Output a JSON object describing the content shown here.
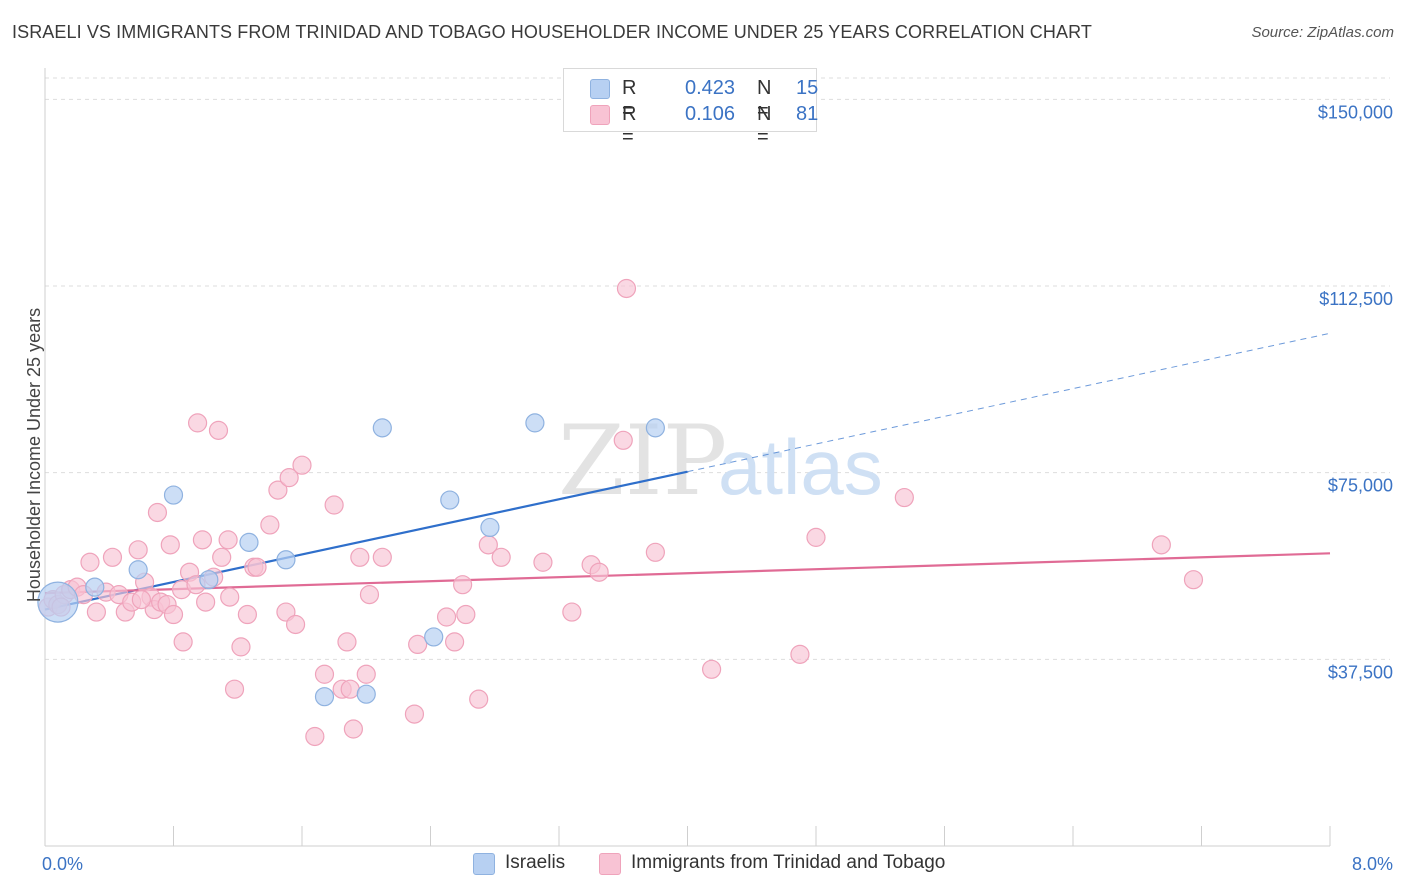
{
  "title": "ISRAELI VS IMMIGRANTS FROM TRINIDAD AND TOBAGO HOUSEHOLDER INCOME UNDER 25 YEARS CORRELATION CHART",
  "source": "Source: ZipAtlas.com",
  "watermark": {
    "zip": "ZIP",
    "atlas": "atlas"
  },
  "legend_top": {
    "r_label": "R =",
    "n_label": "N =",
    "rows": [
      {
        "r": "0.423",
        "n": "15"
      },
      {
        "r": "0.106",
        "n": "81"
      }
    ]
  },
  "legend_bottom": [
    "Israelis",
    "Immigrants from Trinidad and Tobago"
  ],
  "colors": {
    "israelis_fill": "#b7d0f2",
    "israelis_stroke": "#8fb2e0",
    "israelis_line": "#2f6fcb",
    "tt_fill": "#f8c3d4",
    "tt_stroke": "#efa3bb",
    "tt_line": "#e06b95",
    "axis_text": "#3b73c4",
    "grid": "#dddddd"
  },
  "chart_data": {
    "type": "scatter",
    "ylabel": "Householder Income Under 25 years",
    "x_range": [
      0,
      8
    ],
    "x_unit": "%",
    "y_range": [
      0,
      157500
    ],
    "x_tick_labels": [
      "0.0%",
      "8.0%"
    ],
    "y_ticks": [
      37500,
      75000,
      112500,
      150000
    ],
    "y_tick_labels": [
      "$37,500",
      "$75,000",
      "$112,500",
      "$150,000"
    ],
    "grid": true,
    "series": [
      {
        "name": "Israelis",
        "r": 0.423,
        "n": 15,
        "points": [
          [
            0.08,
            49000,
            20
          ],
          [
            0.31,
            52000,
            9
          ],
          [
            0.58,
            55500,
            9
          ],
          [
            0.8,
            70500,
            9
          ],
          [
            1.02,
            53500,
            9
          ],
          [
            1.27,
            61000,
            9
          ],
          [
            1.5,
            57500,
            9
          ],
          [
            1.74,
            30000,
            9
          ],
          [
            2.0,
            30500,
            9
          ],
          [
            2.1,
            84000,
            9
          ],
          [
            2.42,
            42000,
            9
          ],
          [
            2.52,
            69500,
            9
          ],
          [
            2.77,
            64000,
            9
          ],
          [
            3.05,
            85000,
            9
          ],
          [
            3.8,
            84000,
            9
          ]
        ],
        "trend": {
          "x_start": 0.0,
          "y_start": 47500,
          "x_end_solid": 4.0,
          "y_end_solid": 75200,
          "x_end_dashed": 8.0,
          "y_end_dashed": 103000
        }
      },
      {
        "name": "Immigrants from Trinidad and Tobago",
        "r": 0.106,
        "n": 81,
        "points": [
          [
            0.02,
            48000
          ],
          [
            0.05,
            49500
          ],
          [
            0.08,
            48500
          ],
          [
            0.12,
            50500
          ],
          [
            0.16,
            51500
          ],
          [
            0.2,
            52000
          ],
          [
            0.24,
            50500
          ],
          [
            0.28,
            57000
          ],
          [
            0.32,
            47000
          ],
          [
            0.38,
            51000
          ],
          [
            0.42,
            58000
          ],
          [
            0.46,
            50500
          ],
          [
            0.5,
            47000
          ],
          [
            0.54,
            49000
          ],
          [
            0.58,
            59500
          ],
          [
            0.62,
            53000
          ],
          [
            0.66,
            50000
          ],
          [
            0.68,
            47500
          ],
          [
            0.72,
            49000
          ],
          [
            0.7,
            67000
          ],
          [
            0.76,
            48500
          ],
          [
            0.8,
            46500
          ],
          [
            0.78,
            60500
          ],
          [
            0.85,
            51500
          ],
          [
            0.86,
            41000
          ],
          [
            0.9,
            55000
          ],
          [
            0.94,
            52500
          ],
          [
            0.95,
            85000
          ],
          [
            0.98,
            61500
          ],
          [
            1.0,
            49000
          ],
          [
            1.05,
            54000
          ],
          [
            1.08,
            83500
          ],
          [
            1.1,
            58000
          ],
          [
            1.14,
            61500
          ],
          [
            1.15,
            50000
          ],
          [
            1.18,
            31500
          ],
          [
            1.22,
            40000
          ],
          [
            1.26,
            46500
          ],
          [
            1.3,
            56000
          ],
          [
            1.32,
            56000
          ],
          [
            1.4,
            64500
          ],
          [
            1.45,
            71500
          ],
          [
            1.5,
            47000
          ],
          [
            1.52,
            74000
          ],
          [
            1.56,
            44500
          ],
          [
            1.6,
            76500
          ],
          [
            1.68,
            22000
          ],
          [
            1.74,
            34500
          ],
          [
            1.8,
            68500
          ],
          [
            1.85,
            31500
          ],
          [
            1.88,
            41000
          ],
          [
            1.92,
            23500
          ],
          [
            1.96,
            58000
          ],
          [
            2.0,
            34500
          ],
          [
            2.02,
            50500
          ],
          [
            2.1,
            58000
          ],
          [
            2.3,
            26500
          ],
          [
            2.32,
            40500
          ],
          [
            2.5,
            46000
          ],
          [
            2.55,
            41000
          ],
          [
            2.6,
            52500
          ],
          [
            2.62,
            46500
          ],
          [
            2.7,
            29500
          ],
          [
            2.76,
            60500
          ],
          [
            2.84,
            58000
          ],
          [
            3.1,
            57000
          ],
          [
            3.28,
            47000
          ],
          [
            3.4,
            56500
          ],
          [
            3.45,
            55000
          ],
          [
            3.6,
            81500
          ],
          [
            3.62,
            112000
          ],
          [
            3.8,
            59000
          ],
          [
            4.15,
            35500
          ],
          [
            4.7,
            38500
          ],
          [
            4.8,
            62000
          ],
          [
            5.35,
            70000
          ],
          [
            6.95,
            60500
          ],
          [
            7.15,
            53500
          ],
          [
            0.1,
            48000
          ],
          [
            0.6,
            49500
          ],
          [
            1.9,
            31500
          ]
        ],
        "trend": {
          "x_start": 0.0,
          "y_start": 50800,
          "x_end": 8.0,
          "y_end": 58800
        }
      }
    ]
  }
}
